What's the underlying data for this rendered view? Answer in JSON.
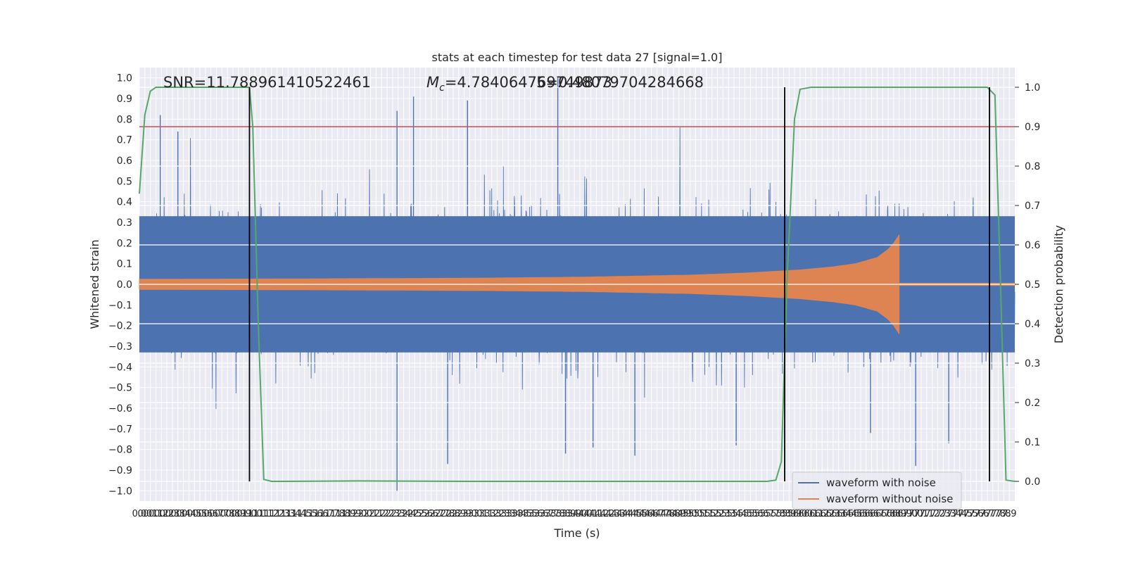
{
  "chart_data": {
    "type": "line",
    "title": "stats at each timestep for test data 27 [signal=1.0]",
    "xlabel": "Time (s)",
    "ylabel_left": "Whitened strain",
    "ylabel_right": "Detection probability",
    "xlim": [
      0.0,
      7.95
    ],
    "ylim_left": [
      -1.05,
      1.05
    ],
    "ylim_right": [
      -0.05,
      1.05
    ],
    "grid": true,
    "legend_placement": "lower-right",
    "x_ticks": [
      "0.0",
      "0.05",
      "0.1",
      "0.15",
      "0.2",
      "0.25",
      "0.3",
      "0.35",
      "0.4",
      "0.45",
      "0.5",
      "0.55",
      "0.6",
      "0.65",
      "0.7",
      "0.75",
      "0.8",
      "0.85",
      "0.9",
      "0.95",
      "1.0",
      "1.05",
      "1.1",
      "1.15",
      "1.2",
      "1.25",
      "1.3",
      "1.35",
      "1.4",
      "1.45",
      "1.5",
      "1.55",
      "1.6",
      "1.65",
      "1.7",
      "1.75",
      "1.8",
      "1.85",
      "1.9",
      "1.95",
      "2.0",
      "2.05",
      "2.1",
      "2.15",
      "2.2",
      "2.25",
      "2.3",
      "2.35",
      "2.4",
      "2.45",
      "2.5",
      "2.55",
      "2.6",
      "2.65",
      "2.7",
      "2.75",
      "2.8",
      "2.85",
      "2.9",
      "2.95",
      "3.0",
      "3.05",
      "3.1",
      "3.15",
      "3.2",
      "3.25",
      "3.3",
      "3.35",
      "3.4",
      "3.45",
      "3.5",
      "3.55",
      "3.6",
      "3.65",
      "3.7",
      "3.75",
      "3.8",
      "3.85",
      "3.9",
      "3.95",
      "4.0",
      "4.05",
      "4.1",
      "4.15",
      "4.2",
      "4.25",
      "4.3",
      "4.35",
      "4.4",
      "4.45",
      "4.5",
      "4.55",
      "4.6",
      "4.65",
      "4.7",
      "4.75",
      "4.8",
      "4.85",
      "4.9",
      "4.95",
      "5.0",
      "5.05",
      "5.1",
      "5.15",
      "5.2",
      "5.25",
      "5.3",
      "5.35",
      "5.4",
      "5.45",
      "5.5",
      "5.55",
      "5.6",
      "5.65",
      "5.7",
      "5.75",
      "5.8",
      "5.85",
      "5.9",
      "5.95",
      "6.0",
      "6.05",
      "6.1",
      "6.15",
      "6.2",
      "6.25",
      "6.3",
      "6.35",
      "6.4",
      "6.45",
      "6.5",
      "6.55",
      "6.6",
      "6.65",
      "6.7",
      "6.75",
      "6.8",
      "6.85",
      "6.9",
      "6.95",
      "7.0",
      "7.05",
      "7.1",
      "7.15",
      "7.2",
      "7.25",
      "7.3",
      "7.35",
      "7.4",
      "7.45",
      "7.5",
      "7.55",
      "7.6",
      "7.65",
      "7.7",
      "7.75",
      "7.8",
      "7.85",
      "7.9"
    ],
    "x_tick_labels": [
      "0.0",
      "0.0",
      "0.1",
      "0.1",
      "0.2",
      "0.2",
      "0.3",
      "0.3",
      "0.4",
      "0.4",
      "0.5",
      "0.5",
      "0.6",
      "0.6",
      "0.7",
      "0.7",
      "0.8",
      "0.8",
      "0.9",
      "0.9",
      "1.0",
      "1.0",
      "1.1",
      "1.1",
      "1.2",
      "1.2",
      "1.3",
      "1.3",
      "1.4",
      "1.4",
      "1.5",
      "1.5",
      "1.6",
      "1.6",
      "1.7",
      "1.7",
      "1.8",
      "1.8",
      "1.9",
      "1.9",
      "2.0",
      "2.0",
      "2.1",
      "2.1",
      "2.2",
      "2.2",
      "2.3",
      "2.3",
      "2.4",
      "2.4",
      "2.5",
      "2.5",
      "2.6",
      "2.6",
      "2.7",
      "2.7",
      "2.8",
      "2.8",
      "2.9",
      "2.9",
      "3.0",
      "3.0",
      "3.1",
      "3.1",
      "3.2",
      "3.2",
      "3.3",
      "3.3",
      "3.4",
      "3.4",
      "3.5",
      "3.5",
      "3.6",
      "3.6",
      "3.7",
      "3.7",
      "3.8",
      "3.8",
      "3.9",
      "3.9",
      "4.0",
      "4.0",
      "4.1",
      "4.1",
      "4.2",
      "4.2",
      "4.3",
      "4.3",
      "4.4",
      "4.4",
      "4.5",
      "4.5",
      "4.6",
      "4.6",
      "4.7",
      "4.7",
      "4.8",
      "4.8",
      "4.9",
      "4.9",
      "5.0",
      "5.0",
      "5.1",
      "5.1",
      "5.2",
      "5.2",
      "5.3",
      "5.3",
      "5.4",
      "5.4",
      "5.5",
      "5.5",
      "5.6",
      "5.6",
      "5.7",
      "5.7",
      "5.8",
      "5.8",
      "5.9",
      "5.9",
      "6.0",
      "6.0",
      "6.1",
      "6.1",
      "6.2",
      "6.2",
      "6.3",
      "6.3",
      "6.4",
      "6.4",
      "6.5",
      "6.5",
      "6.6",
      "6.6",
      "6.7",
      "6.7",
      "6.8",
      "6.8",
      "6.9",
      "6.9",
      "7.0",
      "7.0",
      "7.1",
      "7.1",
      "7.2",
      "7.2",
      "7.3",
      "7.3",
      "7.4",
      "7.4",
      "7.5",
      "7.5",
      "7.6",
      "7.6",
      "7.7",
      "7.7",
      "7.8",
      "7.8",
      "7.9"
    ],
    "y_ticks_left": [
      -1.0,
      -0.9,
      -0.8,
      -0.7,
      -0.6,
      -0.5,
      -0.4,
      -0.3,
      -0.2,
      -0.1,
      0.0,
      0.1,
      0.2,
      0.3,
      0.4,
      0.5,
      0.6,
      0.7,
      0.8,
      0.9,
      1.0
    ],
    "y_tick_labels_left": [
      "−1.0",
      "−0.9",
      "−0.8",
      "−0.7",
      "−0.6",
      "−0.5",
      "−0.4",
      "−0.3",
      "−0.2",
      "−0.1",
      "0.0",
      "0.1",
      "0.2",
      "0.3",
      "0.4",
      "0.5",
      "0.6",
      "0.7",
      "0.8",
      "0.9",
      "1.0"
    ],
    "y_ticks_right": [
      0.0,
      0.1,
      0.2,
      0.3,
      0.4,
      0.5,
      0.6,
      0.7,
      0.8,
      0.9,
      1.0
    ],
    "y_tick_labels_right": [
      "0.0",
      "0.1",
      "0.2",
      "0.3",
      "0.4",
      "0.5",
      "0.6",
      "0.7",
      "0.8",
      "0.9",
      "1.0"
    ],
    "series": [
      {
        "name": "waveform with noise",
        "color": "#4c72b0",
        "axis": "left",
        "style": "dense noise trace",
        "envelope": {
          "x": [
            0.0,
            1.0,
            2.0,
            3.0,
            4.0,
            5.0,
            6.0,
            6.5,
            7.0,
            7.95
          ],
          "amplitude": [
            0.42,
            0.4,
            0.4,
            0.42,
            0.45,
            0.42,
            0.43,
            0.42,
            0.42,
            0.42
          ]
        },
        "peaks": [
          {
            "x": 0.19,
            "y": 0.82
          },
          {
            "x": 0.35,
            "y": 0.74
          },
          {
            "x": 2.34,
            "y": -1.0
          },
          {
            "x": 2.34,
            "y": 0.84
          },
          {
            "x": 2.49,
            "y": 0.91
          },
          {
            "x": 2.8,
            "y": -0.87
          },
          {
            "x": 2.98,
            "y": 0.89
          },
          {
            "x": 3.8,
            "y": 1.0
          },
          {
            "x": 3.87,
            "y": -0.82
          },
          {
            "x": 4.12,
            "y": -0.79
          },
          {
            "x": 4.5,
            "y": -0.83
          },
          {
            "x": 5.42,
            "y": -0.78
          },
          {
            "x": 6.64,
            "y": -0.72
          },
          {
            "x": 7.05,
            "y": -0.88
          },
          {
            "x": 7.35,
            "y": -0.77
          }
        ]
      },
      {
        "name": "waveform without noise",
        "color": "#dd8452",
        "axis": "left",
        "style": "chirp",
        "chirp_end": 6.9,
        "amplitude": {
          "x": [
            0.0,
            1.0,
            2.0,
            3.0,
            4.0,
            5.0,
            5.5,
            6.0,
            6.3,
            6.5,
            6.7,
            6.8,
            6.85,
            6.9
          ],
          "y": [
            0.025,
            0.026,
            0.028,
            0.03,
            0.035,
            0.045,
            0.055,
            0.07,
            0.085,
            0.1,
            0.13,
            0.17,
            0.2,
            0.24
          ]
        }
      },
      {
        "name": "detection probability",
        "color": "#55a868",
        "axis": "right",
        "x": [
          0.0,
          0.05,
          0.1,
          0.15,
          0.2,
          0.3,
          0.5,
          1.0,
          1.03,
          1.08,
          1.13,
          1.2,
          1.3,
          2.0,
          3.0,
          4.0,
          5.0,
          5.7,
          5.78,
          5.83,
          5.88,
          5.95,
          6.0,
          6.1,
          6.5,
          7.0,
          7.7,
          7.77,
          7.82,
          7.87,
          7.95
        ],
        "y": [
          0.73,
          0.93,
          0.99,
          1.0,
          1.0,
          1.0,
          1.0,
          1.0,
          0.9,
          0.4,
          0.005,
          0.0,
          0.0,
          0.001,
          0.0,
          0.0,
          0.0,
          0.0,
          0.003,
          0.05,
          0.5,
          0.92,
          0.995,
          1.0,
          1.0,
          1.0,
          1.0,
          0.98,
          0.5,
          0.003,
          0.0
        ]
      }
    ],
    "threshold": {
      "axis": "right",
      "y": 0.9,
      "color": "#c44e52"
    },
    "vlines": {
      "x": [
        1.0,
        5.86,
        7.72
      ],
      "y_range_right": [
        0.0,
        1.0
      ],
      "color": "#000000"
    },
    "legend": [
      "waveform with noise",
      "waveform without noise"
    ],
    "annotations": {
      "snr": "SNR=11.788961410522461",
      "mc_symbol": "M",
      "mc_sub": "c",
      "mc_value": "=4.784064769749873",
      "overlap": "5=0.48079704284668"
    }
  }
}
